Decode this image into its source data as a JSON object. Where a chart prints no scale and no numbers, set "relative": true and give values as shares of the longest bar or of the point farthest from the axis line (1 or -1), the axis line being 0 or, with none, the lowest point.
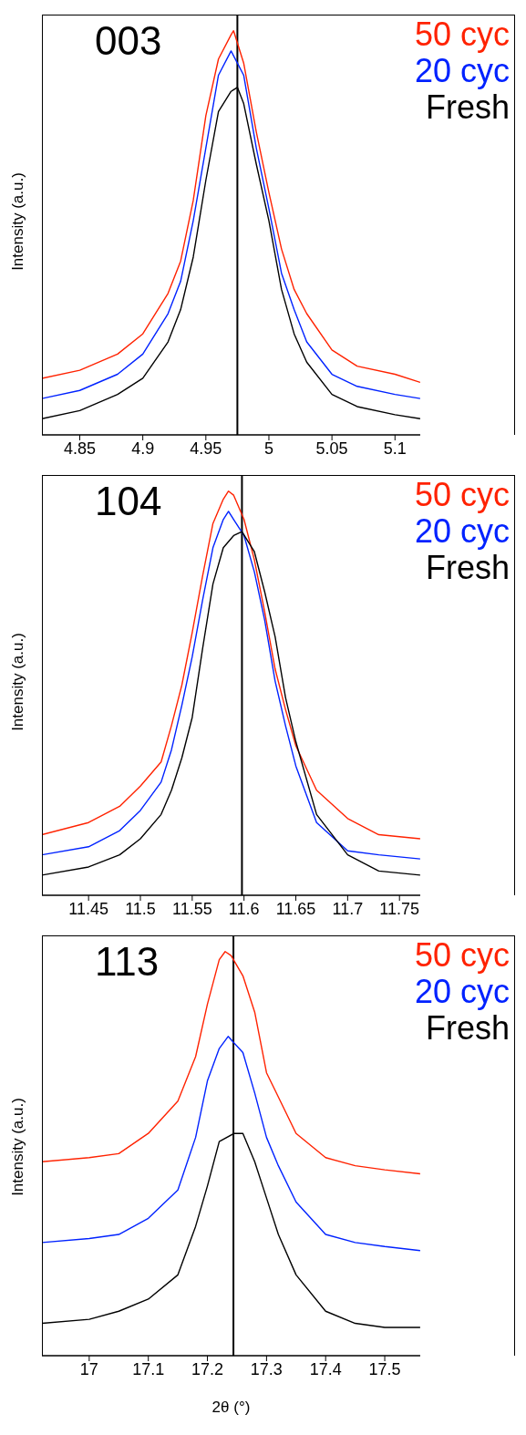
{
  "chart_data": [
    {
      "type": "line",
      "relative": true,
      "ylabel": "Intensity (a.u.)",
      "annotations": [
        "003"
      ],
      "legend": "top right",
      "xlim": [
        4.82,
        5.12
      ],
      "xticks": [
        4.85,
        4.9,
        4.95,
        5,
        5.05,
        5.1
      ],
      "ref_lines": [
        {
          "axis": "x",
          "value": 4.975,
          "color": "#000000"
        }
      ],
      "series": [
        {
          "name": "50 cyc",
          "color": "#ff2200",
          "x": [
            4.82,
            4.85,
            4.88,
            4.9,
            4.92,
            4.93,
            4.94,
            4.95,
            4.96,
            4.97,
            4.972,
            4.98,
            4.99,
            5,
            5.01,
            5.02,
            5.03,
            5.05,
            5.07,
            5.1,
            5.12
          ],
          "values": [
            0.14,
            0.16,
            0.2,
            0.25,
            0.35,
            0.43,
            0.58,
            0.79,
            0.93,
            0.99,
            1,
            0.92,
            0.75,
            0.6,
            0.46,
            0.36,
            0.3,
            0.21,
            0.17,
            0.15,
            0.13
          ]
        },
        {
          "name": "20 cyc",
          "color": "#0022ff",
          "x": [
            4.82,
            4.85,
            4.88,
            4.9,
            4.92,
            4.93,
            4.94,
            4.95,
            4.96,
            4.97,
            4.98,
            4.99,
            5,
            5.01,
            5.02,
            5.03,
            5.05,
            5.07,
            5.1,
            5.12
          ],
          "values": [
            0.09,
            0.11,
            0.15,
            0.2,
            0.3,
            0.38,
            0.53,
            0.71,
            0.89,
            0.95,
            0.89,
            0.71,
            0.56,
            0.4,
            0.31,
            0.23,
            0.15,
            0.12,
            0.1,
            0.09
          ]
        },
        {
          "name": "Fresh",
          "color": "#000000",
          "x": [
            4.82,
            4.85,
            4.88,
            4.9,
            4.92,
            4.93,
            4.94,
            4.95,
            4.96,
            4.97,
            4.975,
            4.98,
            4.99,
            5,
            5.01,
            5.02,
            5.03,
            5.05,
            5.07,
            5.1,
            5.12
          ],
          "values": [
            0.04,
            0.06,
            0.1,
            0.14,
            0.23,
            0.31,
            0.44,
            0.63,
            0.8,
            0.85,
            0.86,
            0.82,
            0.67,
            0.53,
            0.36,
            0.25,
            0.18,
            0.1,
            0.07,
            0.05,
            0.04
          ]
        }
      ]
    },
    {
      "type": "line",
      "relative": true,
      "ylabel": "Intensity (a.u.)",
      "annotations": [
        "104"
      ],
      "legend": "top right",
      "xlim": [
        11.405,
        11.77
      ],
      "xticks": [
        11.45,
        11.5,
        11.55,
        11.6,
        11.65,
        11.7,
        11.75
      ],
      "ref_lines": [
        {
          "axis": "x",
          "value": 11.598,
          "color": "#000000"
        }
      ],
      "series": [
        {
          "name": "50 cyc",
          "color": "#ff2200",
          "x": [
            11.405,
            11.45,
            11.48,
            11.5,
            11.52,
            11.53,
            11.54,
            11.55,
            11.56,
            11.57,
            11.58,
            11.585,
            11.59,
            11.6,
            11.61,
            11.62,
            11.63,
            11.64,
            11.65,
            11.67,
            11.7,
            11.73,
            11.77
          ],
          "values": [
            0.15,
            0.18,
            0.22,
            0.27,
            0.33,
            0.42,
            0.52,
            0.65,
            0.79,
            0.92,
            0.98,
            1,
            0.99,
            0.93,
            0.83,
            0.7,
            0.56,
            0.46,
            0.37,
            0.26,
            0.19,
            0.15,
            0.14
          ]
        },
        {
          "name": "20 cyc",
          "color": "#0022ff",
          "x": [
            11.405,
            11.45,
            11.48,
            11.5,
            11.52,
            11.53,
            11.54,
            11.55,
            11.56,
            11.57,
            11.58,
            11.585,
            11.59,
            11.6,
            11.61,
            11.62,
            11.63,
            11.64,
            11.65,
            11.67,
            11.7,
            11.73,
            11.77
          ],
          "values": [
            0.1,
            0.12,
            0.16,
            0.21,
            0.28,
            0.36,
            0.47,
            0.59,
            0.73,
            0.86,
            0.93,
            0.95,
            0.93,
            0.89,
            0.8,
            0.68,
            0.53,
            0.42,
            0.32,
            0.18,
            0.11,
            0.1,
            0.09
          ]
        },
        {
          "name": "Fresh",
          "color": "#000000",
          "x": [
            11.405,
            11.45,
            11.48,
            11.5,
            11.52,
            11.53,
            11.54,
            11.55,
            11.56,
            11.57,
            11.58,
            11.59,
            11.598,
            11.61,
            11.62,
            11.63,
            11.64,
            11.65,
            11.67,
            11.7,
            11.73,
            11.77
          ],
          "values": [
            0.05,
            0.07,
            0.1,
            0.14,
            0.2,
            0.26,
            0.34,
            0.44,
            0.61,
            0.77,
            0.86,
            0.89,
            0.9,
            0.85,
            0.75,
            0.64,
            0.49,
            0.38,
            0.2,
            0.1,
            0.06,
            0.05
          ]
        }
      ]
    },
    {
      "type": "line",
      "relative": true,
      "ylabel": "Intensity (a.u.)",
      "xlabel": "2θ (°)",
      "annotations": [
        "113"
      ],
      "legend": "top right",
      "xlim": [
        16.92,
        17.56
      ],
      "xticks": [
        17,
        17.1,
        17.2,
        17.3,
        17.4,
        17.5
      ],
      "ref_lines": [
        {
          "axis": "x",
          "value": 17.244,
          "color": "#000000"
        }
      ],
      "series": [
        {
          "name": "50 cyc",
          "color": "#ff2200",
          "x": [
            16.92,
            17,
            17.05,
            17.1,
            17.15,
            17.18,
            17.2,
            17.22,
            17.23,
            17.24,
            17.26,
            17.28,
            17.3,
            17.32,
            17.35,
            17.4,
            17.45,
            17.5,
            17.56
          ],
          "values": [
            0.48,
            0.49,
            0.5,
            0.55,
            0.63,
            0.74,
            0.87,
            0.98,
            1,
            0.99,
            0.94,
            0.85,
            0.7,
            0.64,
            0.55,
            0.49,
            0.47,
            0.46,
            0.45
          ]
        },
        {
          "name": "20 cyc",
          "color": "#0022ff",
          "x": [
            16.92,
            17,
            17.05,
            17.1,
            17.15,
            17.18,
            17.2,
            17.22,
            17.235,
            17.26,
            17.28,
            17.3,
            17.32,
            17.35,
            17.4,
            17.45,
            17.5,
            17.56
          ],
          "values": [
            0.28,
            0.29,
            0.3,
            0.34,
            0.41,
            0.54,
            0.68,
            0.76,
            0.79,
            0.75,
            0.65,
            0.54,
            0.47,
            0.38,
            0.3,
            0.28,
            0.27,
            0.26
          ]
        },
        {
          "name": "Fresh",
          "color": "#000000",
          "x": [
            16.92,
            17,
            17.05,
            17.1,
            17.15,
            17.18,
            17.2,
            17.22,
            17.245,
            17.26,
            17.28,
            17.3,
            17.32,
            17.35,
            17.4,
            17.45,
            17.5,
            17.56
          ],
          "values": [
            0.08,
            0.09,
            0.11,
            0.14,
            0.2,
            0.32,
            0.42,
            0.53,
            0.55,
            0.55,
            0.48,
            0.39,
            0.3,
            0.2,
            0.11,
            0.08,
            0.07,
            0.07
          ]
        }
      ]
    }
  ]
}
